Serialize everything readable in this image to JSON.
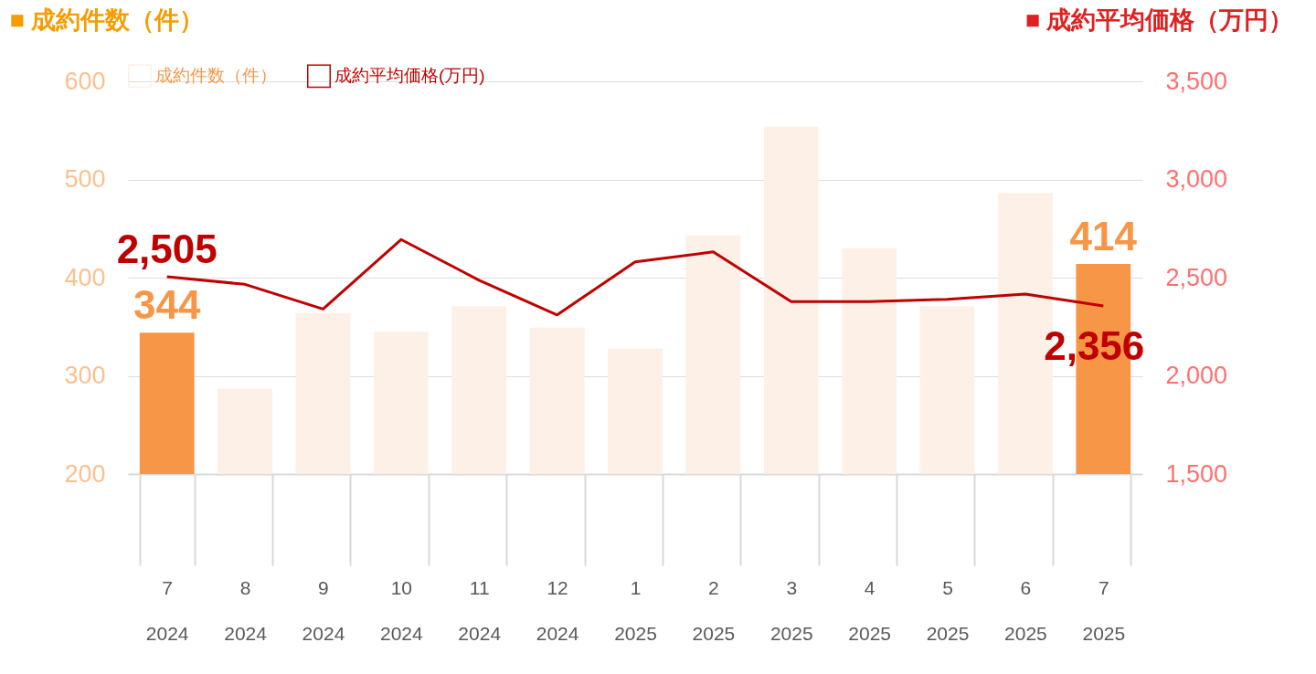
{
  "chart_data": {
    "type": "bar",
    "ylabel": "■ 成約件数（件）",
    "y2label": "■ 成約平均価格（万円）",
    "categories": [
      "7\n2024",
      "8\n2024",
      "9\n2024",
      "10\n2024",
      "11\n2024",
      "12\n2024",
      "1\n2025",
      "2\n2025",
      "3\n2025",
      "4\n2025",
      "5\n2025",
      "6\n2025",
      "7\n2025"
    ],
    "series": [
      {
        "name": "成約件数（件）",
        "color": "#fdf0e6",
        "colors": [
          "#f79646",
          "#fdf0e6",
          "#fdf0e6",
          "#fdf0e6",
          "#fdf0e6",
          "#fdf0e6",
          "#fdf0e6",
          "#fdf0e6",
          "#fdf0e6",
          "#fdf0e6",
          "#fdf0e6",
          "#fdf0e6",
          "#f79646"
        ],
        "values": [
          344,
          287,
          364,
          345,
          371,
          349,
          328,
          443,
          554,
          430,
          371,
          486,
          414
        ],
        "value_labels": [
          "344",
          null,
          null,
          null,
          null,
          null,
          null,
          null,
          null,
          null,
          null,
          null,
          "414"
        ]
      },
      {
        "name": "成約平均価格(万円)",
        "type": "line",
        "axis": "y2",
        "color": "#c00000",
        "values": [
          2505,
          2466,
          2340,
          2694,
          2487,
          2310,
          2580,
          2631,
          2378,
          2378,
          2390,
          2416,
          2356
        ],
        "value_labels": [
          "2,505",
          null,
          null,
          null,
          null,
          null,
          null,
          null,
          null,
          null,
          null,
          null,
          "2,356"
        ]
      }
    ],
    "ylim": [
      200,
      600
    ],
    "yticks": [
      200,
      300,
      400,
      500,
      600
    ],
    "y2lim": [
      1500,
      3500
    ],
    "y2ticks": [
      {
        "value": 1500,
        "label": "1,500"
      },
      {
        "value": 2000,
        "label": "2,000"
      },
      {
        "value": 2500,
        "label": "2,500"
      },
      {
        "value": 3000,
        "label": "3,000"
      },
      {
        "value": 3500,
        "label": "3,500"
      }
    ],
    "grid": "y",
    "legend": "top"
  }
}
